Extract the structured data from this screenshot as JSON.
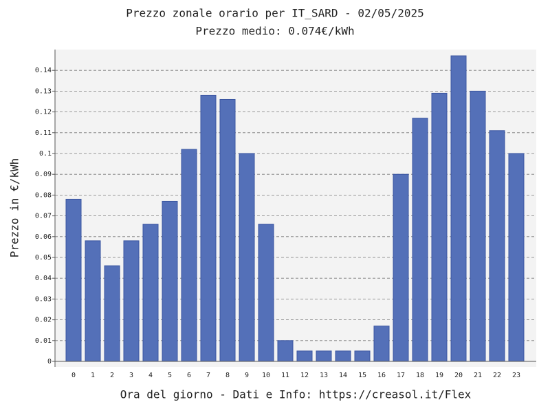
{
  "chart_data": {
    "type": "bar",
    "title": "Prezzo zonale orario per IT_SARD - 02/05/2025",
    "subtitle": "Prezzo medio: 0.074€/kWh",
    "x_label": "Ora del giorno - Dati e Info: https://creasol.it/Flex",
    "y_label": "Prezzo in €/kWh",
    "categories": [
      "0",
      "1",
      "2",
      "3",
      "4",
      "5",
      "6",
      "7",
      "8",
      "9",
      "10",
      "11",
      "12",
      "13",
      "14",
      "15",
      "16",
      "17",
      "18",
      "19",
      "20",
      "21",
      "22",
      "23"
    ],
    "values": [
      0.078,
      0.058,
      0.046,
      0.058,
      0.066,
      0.077,
      0.102,
      0.128,
      0.126,
      0.1,
      0.066,
      0.01,
      0.005,
      0.005,
      0.005,
      0.005,
      0.017,
      0.09,
      0.117,
      0.129,
      0.147,
      0.13,
      0.111,
      0.1
    ],
    "color": "#5470b8",
    "ylim": [
      0,
      0.15
    ],
    "yticks": [
      0,
      0.01,
      0.02,
      0.03,
      0.04,
      0.05,
      0.06,
      0.07,
      0.08,
      0.09,
      0.1,
      0.11,
      0.12,
      0.13,
      0.14
    ],
    "grid": true
  }
}
